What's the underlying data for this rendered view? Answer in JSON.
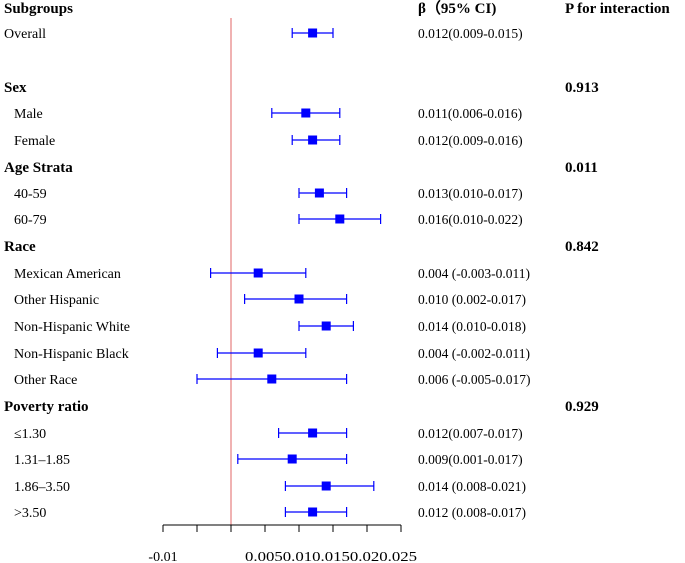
{
  "colors": {
    "marker": "#0000ff",
    "refline": "#e06666",
    "axis": "#000000",
    "text": "#000000"
  },
  "headers": {
    "subgroups": "Subgroups",
    "beta": "β（95% CI)",
    "p": "P for interaction"
  },
  "chart_data": {
    "type": "forest",
    "title": "",
    "xlim": [
      -0.01,
      0.025
    ],
    "reference_line": 0,
    "x_ticks": [
      -0.01,
      -0.005,
      0,
      0.005,
      0.01,
      0.015,
      0.02,
      0.025
    ],
    "x_tick_labels": [
      "-0.01",
      "",
      "",
      "0.005",
      "0.01",
      "0.015",
      "0.02",
      "0.025"
    ],
    "x_tick_text": [
      "-0.01",
      "0.0050.010.0150.020.025"
    ],
    "rows": [
      {
        "label": "Overall",
        "kind": "item",
        "indent": false,
        "beta": 0.012,
        "lo": 0.009,
        "hi": 0.015,
        "ci_text": "0.012(0.009-0.015)"
      },
      {
        "label": "Sex",
        "kind": "group",
        "p": "0.913"
      },
      {
        "label": "Male",
        "kind": "item",
        "indent": true,
        "beta": 0.011,
        "lo": 0.006,
        "hi": 0.016,
        "ci_text": "0.011(0.006-0.016)"
      },
      {
        "label": "Female",
        "kind": "item",
        "indent": true,
        "beta": 0.012,
        "lo": 0.009,
        "hi": 0.016,
        "ci_text": "0.012(0.009-0.016)"
      },
      {
        "label": "Age Strata",
        "kind": "group",
        "p": "0.011"
      },
      {
        "label": "40-59",
        "kind": "item",
        "indent": true,
        "beta": 0.013,
        "lo": 0.01,
        "hi": 0.017,
        "ci_text": "0.013(0.010-0.017)"
      },
      {
        "label": "60-79",
        "kind": "item",
        "indent": true,
        "beta": 0.016,
        "lo": 0.01,
        "hi": 0.022,
        "ci_text": "0.016(0.010-0.022)"
      },
      {
        "label": "Race",
        "kind": "group",
        "p": "0.842"
      },
      {
        "label": "Mexican American",
        "kind": "item",
        "indent": true,
        "beta": 0.004,
        "lo": -0.003,
        "hi": 0.011,
        "ci_text": "0.004 (-0.003-0.011)"
      },
      {
        "label": "Other Hispanic",
        "kind": "item",
        "indent": true,
        "beta": 0.01,
        "lo": 0.002,
        "hi": 0.017,
        "ci_text": "0.010 (0.002-0.017)"
      },
      {
        "label": "Non-Hispanic White",
        "kind": "item",
        "indent": true,
        "beta": 0.014,
        "lo": 0.01,
        "hi": 0.018,
        "ci_text": "0.014 (0.010-0.018)"
      },
      {
        "label": "Non-Hispanic Black",
        "kind": "item",
        "indent": true,
        "beta": 0.004,
        "lo": -0.002,
        "hi": 0.011,
        "ci_text": "0.004 (-0.002-0.011)"
      },
      {
        "label": "Other Race",
        "kind": "item",
        "indent": true,
        "beta": 0.006,
        "lo": -0.005,
        "hi": 0.017,
        "ci_text": "0.006 (-0.005-0.017)"
      },
      {
        "label": "Poverty ratio",
        "kind": "group",
        "p": "0.929"
      },
      {
        "label": "≤1.30",
        "kind": "item",
        "indent": true,
        "beta": 0.012,
        "lo": 0.007,
        "hi": 0.017,
        "ci_text": "0.012(0.007-0.017)"
      },
      {
        "label": "1.31–1.85",
        "kind": "item",
        "indent": true,
        "beta": 0.009,
        "lo": 0.001,
        "hi": 0.017,
        "ci_text": "0.009(0.001-0.017)"
      },
      {
        "label": "1.86–3.50",
        "kind": "item",
        "indent": true,
        "beta": 0.014,
        "lo": 0.008,
        "hi": 0.021,
        "ci_text": "0.014 (0.008-0.021)"
      },
      {
        "label": ">3.50",
        "kind": "item",
        "indent": true,
        "beta": 0.012,
        "lo": 0.008,
        "hi": 0.017,
        "ci_text": "0.012 (0.008-0.017)"
      }
    ]
  }
}
